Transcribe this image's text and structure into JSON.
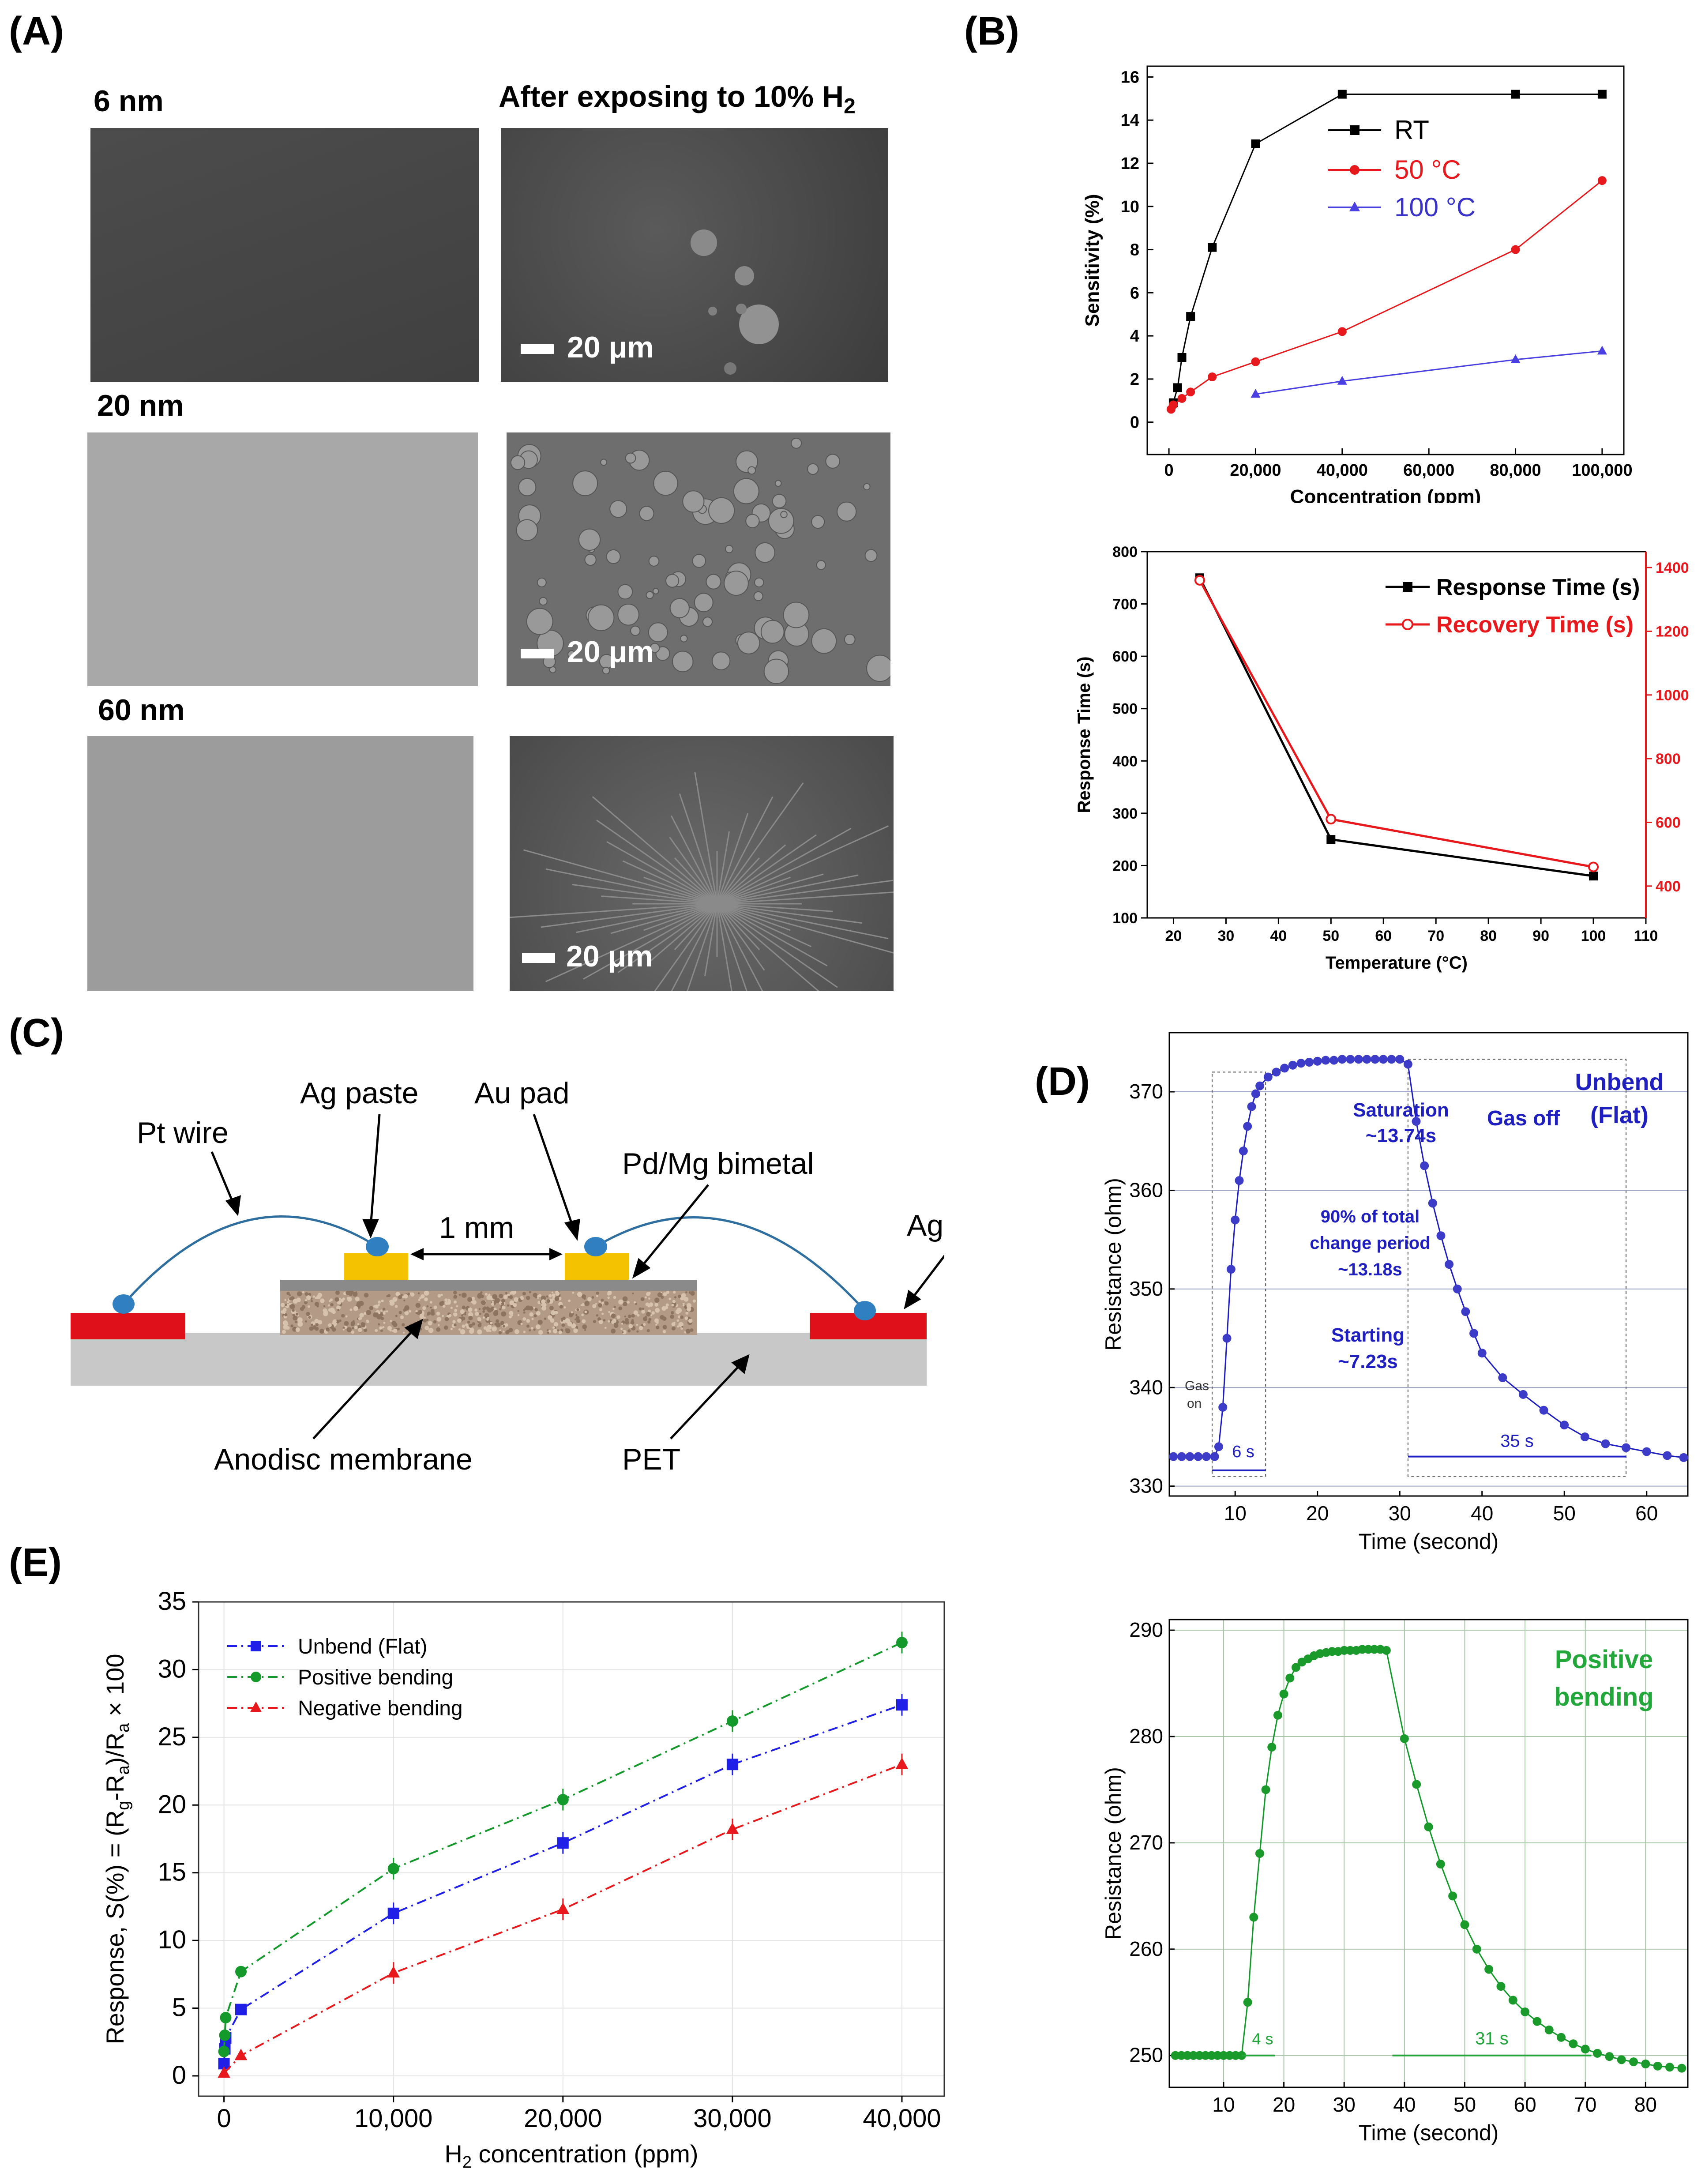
{
  "panels": {
    "A": {
      "label": "(A)",
      "thickness_labels": [
        "6 nm",
        "20 nm",
        "60 nm"
      ],
      "after_label": "After exposing to 10% H",
      "after_sub": "2",
      "scale_bar": "20 μm"
    },
    "B": {
      "label": "(B)"
    },
    "C": {
      "label": "(C)",
      "labels": {
        "ag_paste_top": "Ag paste",
        "au_pad": "Au pad",
        "pt_wire": "Pt wire",
        "pd_mg": "Pd/Mg bimetal",
        "gap": "1 mm",
        "ag_paste_right": "Ag paste",
        "anodisc": "Anodisc membrane",
        "pet": "PET"
      },
      "colors": {
        "pad": "#f5c200",
        "paste": "#e0101a",
        "dot": "#2f7fc1",
        "wire": "#2f6f9f",
        "substrate": "#c8c8c8"
      }
    },
    "D": {
      "label": "(D)"
    },
    "E": {
      "label": "(E)"
    }
  },
  "chart_data": [
    {
      "id": "B1",
      "type": "line",
      "xlabel": "Concentration (ppm)",
      "ylabel": "Sensitivity (%)",
      "xlim": [
        -5000,
        105000
      ],
      "ylim": [
        -1.5,
        16.5
      ],
      "xticks": [
        0,
        20000,
        40000,
        60000,
        80000,
        100000
      ],
      "xtick_labels": [
        "0",
        "20,000",
        "40,000",
        "60,000",
        "80,000",
        "100,000"
      ],
      "yticks": [
        0,
        2,
        4,
        6,
        8,
        10,
        12,
        14,
        16
      ],
      "ytick_labels": [
        "0",
        "2",
        "4",
        "6",
        "8",
        "10",
        "12",
        "14",
        "16"
      ],
      "legend": "top-center",
      "series": [
        {
          "name": "RT",
          "color": "#000000",
          "marker": "square",
          "x": [
            1000,
            2000,
            3000,
            5000,
            10000,
            20000,
            40000,
            80000,
            100000
          ],
          "y": [
            0.9,
            1.6,
            3.0,
            4.9,
            8.1,
            12.9,
            15.2,
            15.2,
            15.2
          ]
        },
        {
          "name": "50 °C",
          "color": "#e8191c",
          "marker": "circle",
          "x": [
            500,
            1000,
            3000,
            5000,
            10000,
            20000,
            40000,
            80000,
            100000
          ],
          "y": [
            0.6,
            0.8,
            1.1,
            1.4,
            2.1,
            2.8,
            4.2,
            8.0,
            11.2
          ]
        },
        {
          "name": "100 °C",
          "color": "#4a3fe0",
          "marker": "triangle",
          "x": [
            20000,
            40000,
            80000,
            100000
          ],
          "y": [
            1.3,
            1.9,
            2.9,
            3.3
          ]
        }
      ]
    },
    {
      "id": "B2",
      "type": "line",
      "xlabel": "Temperature (°C)",
      "ylabel": "Response Time (s)",
      "xlim": [
        15,
        110
      ],
      "ylim": [
        100,
        800
      ],
      "y2lim": [
        300,
        1450
      ],
      "xticks": [
        20,
        30,
        40,
        50,
        60,
        70,
        80,
        90,
        100,
        110
      ],
      "xtick_labels": [
        "20",
        "30",
        "40",
        "50",
        "60",
        "70",
        "80",
        "90",
        "100",
        "110"
      ],
      "yticks": [
        100,
        200,
        300,
        400,
        500,
        600,
        700,
        800
      ],
      "ytick_labels": [
        "100",
        "200",
        "300",
        "400",
        "500",
        "600",
        "700",
        "800"
      ],
      "y2ticks": [
        400,
        600,
        800,
        1000,
        1200,
        1400
      ],
      "y2tick_labels": [
        "400",
        "600",
        "800",
        "1000",
        "1200",
        "1400"
      ],
      "legend": "top-right",
      "series": [
        {
          "name": "Response Time (s)",
          "color": "#000000",
          "marker": "square",
          "axis": "left",
          "x": [
            25,
            50,
            100
          ],
          "y": [
            750,
            250,
            180
          ]
        },
        {
          "name": "Recovery Time (s)",
          "color": "#e8191c",
          "marker": "circle-open",
          "axis": "right",
          "x": [
            25,
            50,
            100
          ],
          "y": [
            1360,
            610,
            460
          ]
        }
      ]
    },
    {
      "id": "D1",
      "type": "line",
      "xlabel": "Time (second)",
      "ylabel": "Resistance (ohm)",
      "xlim": [
        2,
        65
      ],
      "ylim": [
        329,
        376
      ],
      "xticks": [
        10,
        20,
        30,
        40,
        50,
        60
      ],
      "xtick_labels": [
        "10",
        "20",
        "30",
        "40",
        "50",
        "60"
      ],
      "yticks": [
        330,
        340,
        350,
        360,
        370
      ],
      "ytick_labels": [
        "330",
        "340",
        "350",
        "360",
        "370"
      ],
      "series": [
        {
          "name": "Unbend (Flat)",
          "color": "#1f1fbf",
          "x": [
            2.5,
            3.5,
            4.5,
            5.5,
            6.5,
            7.5,
            8.0,
            8.5,
            9.0,
            9.5,
            10.0,
            10.5,
            11.0,
            11.5,
            12.0,
            12.5,
            13.0,
            14.0,
            15.0,
            16.0,
            17.0,
            18.0,
            19.0,
            20.0,
            21.0,
            22.0,
            23.0,
            24.0,
            25.0,
            26.0,
            27.0,
            28.0,
            29.0,
            30.0,
            31.0,
            32.0,
            33.0,
            34.0,
            35.0,
            36.0,
            37.0,
            38.0,
            39.0,
            40.0,
            42.5,
            45.0,
            47.5,
            50.0,
            52.5,
            55.0,
            57.5,
            60.0,
            62.5,
            64.5
          ],
          "y": [
            333,
            333,
            333,
            333,
            333,
            333,
            334,
            338,
            345,
            352,
            357,
            361,
            364,
            366.5,
            368.5,
            369.8,
            370.6,
            371.5,
            372.0,
            372.4,
            372.7,
            372.9,
            373.0,
            373.1,
            373.2,
            373.2,
            373.3,
            373.3,
            373.3,
            373.3,
            373.3,
            373.3,
            373.3,
            373.3,
            372.8,
            367.0,
            362.5,
            358.7,
            355.4,
            352.5,
            350.0,
            347.7,
            345.5,
            343.5,
            341.0,
            339.3,
            337.7,
            336.2,
            335.0,
            334.3,
            333.9,
            333.5,
            333.1,
            332.9
          ]
        }
      ],
      "annotations": {
        "title": "Unbend",
        "title2": "(Flat)",
        "gas_off": "Gas off",
        "gas_on": "Gas",
        "gas_on2": "on",
        "saturation": "Saturation",
        "saturation_val": "~13.74s",
        "period1": "90% of total",
        "period2": "change period",
        "period3": "~13.18s",
        "starting": "Starting",
        "starting_val": "~7.23s",
        "t6": "6 s",
        "t35": "35 s"
      }
    },
    {
      "id": "D2",
      "type": "line",
      "xlabel": "Time (second)",
      "ylabel": "Resistance (ohm)",
      "xlim": [
        1,
        87
      ],
      "ylim": [
        247,
        291
      ],
      "xticks": [
        10,
        20,
        30,
        40,
        50,
        60,
        70,
        80
      ],
      "xtick_labels": [
        "10",
        "20",
        "30",
        "40",
        "50",
        "60",
        "70",
        "80"
      ],
      "yticks": [
        250,
        260,
        270,
        280,
        290
      ],
      "ytick_labels": [
        "250",
        "260",
        "270",
        "280",
        "290"
      ],
      "series": [
        {
          "name": "Positive bending",
          "color": "#139a2a",
          "x": [
            2,
            3,
            4,
            5,
            6,
            7,
            8,
            9,
            10,
            11,
            12,
            13,
            14,
            15,
            16,
            17,
            18,
            19,
            20,
            21,
            22,
            23,
            24,
            25,
            26,
            27,
            28,
            29,
            30,
            31,
            32,
            33,
            34,
            35,
            36,
            37,
            40,
            42,
            44,
            46,
            48,
            50,
            52,
            54,
            56,
            58,
            60,
            62,
            64,
            66,
            68,
            70,
            72,
            74,
            76,
            78,
            80,
            82,
            84,
            86
          ],
          "y": [
            250,
            250,
            250,
            250,
            250,
            250,
            250,
            250,
            250,
            250,
            250,
            250,
            255,
            263,
            269,
            275,
            279,
            282,
            284,
            285.5,
            286.5,
            287,
            287.3,
            287.6,
            287.8,
            287.9,
            288,
            288,
            288.1,
            288.1,
            288.1,
            288.2,
            288.2,
            288.2,
            288.2,
            288.1,
            279.8,
            275.5,
            271.5,
            268.0,
            265.0,
            262.3,
            260.0,
            258.1,
            256.5,
            255.2,
            254.1,
            253.2,
            252.4,
            251.7,
            251.1,
            250.6,
            250.2,
            249.9,
            249.6,
            249.4,
            249.2,
            249.0,
            248.9,
            248.8
          ]
        }
      ],
      "annotations": {
        "title": "Positive",
        "title2": "bending",
        "t4": "4 s",
        "t31": "31 s"
      }
    },
    {
      "id": "E",
      "type": "line",
      "xlabel": "H",
      "xlabel_sub": "2",
      "xlabel_tail": " concentration (ppm)",
      "ylabel": "Response, S(%) = (R",
      "ylabel_sub1": "g",
      "ylabel_mid": "-R",
      "ylabel_sub2": "a",
      "ylabel_mid2": ")/R",
      "ylabel_sub3": "a",
      "ylabel_tail": " × 100",
      "xlim": [
        -1500,
        42500
      ],
      "ylim": [
        -1.5,
        35
      ],
      "xticks": [
        0,
        10000,
        20000,
        30000,
        40000
      ],
      "xtick_labels": [
        "0",
        "10,000",
        "20,000",
        "30,000",
        "40,000"
      ],
      "yticks": [
        0,
        5,
        10,
        15,
        20,
        25,
        30,
        35
      ],
      "ytick_labels": [
        "0",
        "5",
        "10",
        "15",
        "20",
        "25",
        "30",
        "35"
      ],
      "legend": "top-left",
      "series": [
        {
          "name": "Unbend (Flat)",
          "color": "#1f1fe8",
          "marker": "square",
          "x": [
            0,
            50,
            100,
            1000,
            10000,
            20000,
            30000,
            40000
          ],
          "y": [
            0.9,
            2.0,
            2.8,
            4.9,
            12.0,
            17.2,
            23.0,
            27.4
          ]
        },
        {
          "name": "Positive bending",
          "color": "#139a2a",
          "marker": "circle",
          "x": [
            0,
            50,
            100,
            1000,
            10000,
            20000,
            30000,
            40000
          ],
          "y": [
            1.8,
            3.0,
            4.3,
            7.7,
            15.3,
            20.4,
            26.2,
            32.0
          ]
        },
        {
          "name": "Negative bending",
          "color": "#e8191c",
          "marker": "triangle",
          "x": [
            0,
            1000,
            10000,
            20000,
            30000,
            40000
          ],
          "y": [
            0.2,
            1.5,
            7.6,
            12.3,
            18.2,
            23.0
          ]
        }
      ]
    }
  ]
}
